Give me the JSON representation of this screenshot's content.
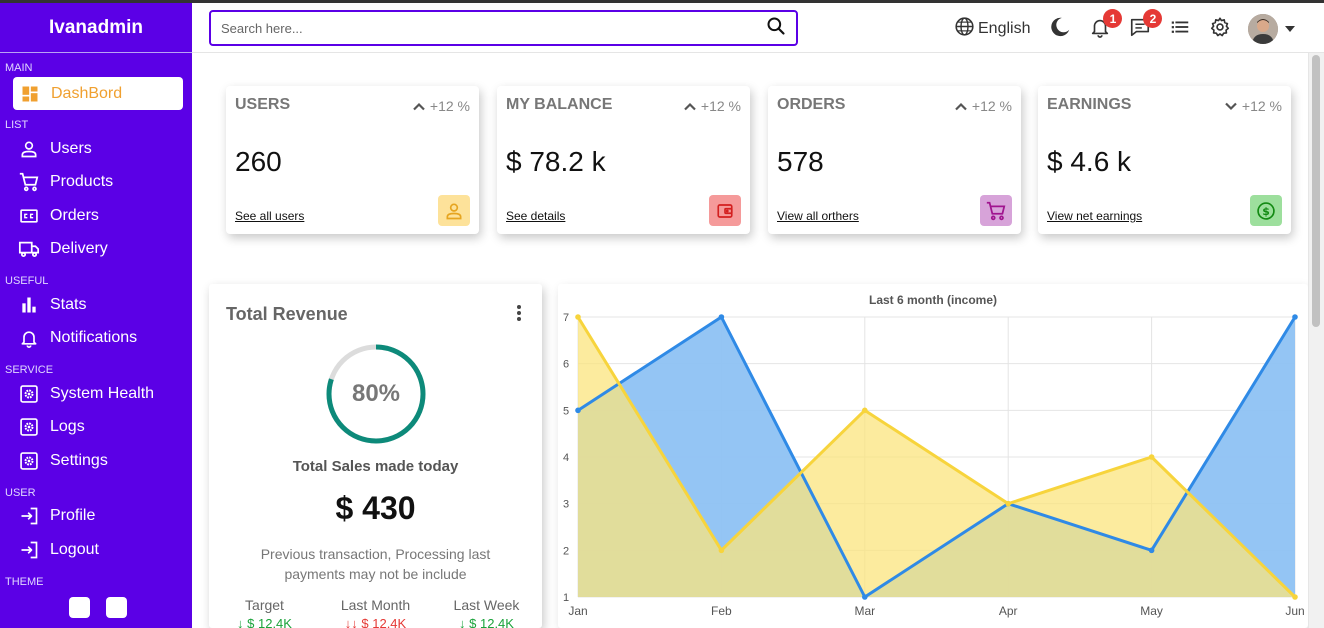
{
  "sidebar": {
    "brand": "Ivanadmin",
    "sections": [
      {
        "title": "MAIN",
        "items": [
          {
            "label": "DashBord",
            "icon": "dashboard-icon",
            "active": true
          }
        ]
      },
      {
        "title": "LIST",
        "items": [
          {
            "label": "Users",
            "icon": "person-icon"
          },
          {
            "label": "Products",
            "icon": "cart-icon"
          },
          {
            "label": "Orders",
            "icon": "credit-card-icon"
          },
          {
            "label": "Delivery",
            "icon": "truck-icon"
          }
        ]
      },
      {
        "title": "USEFUL",
        "items": [
          {
            "label": "Stats",
            "icon": "bar-chart-icon"
          },
          {
            "label": "Notifications",
            "icon": "bell-icon"
          }
        ]
      },
      {
        "title": "SERVICE",
        "items": [
          {
            "label": "System Health",
            "icon": "gear-box-icon"
          },
          {
            "label": "Logs",
            "icon": "gear-box-icon"
          },
          {
            "label": "Settings",
            "icon": "gear-box-icon"
          }
        ]
      },
      {
        "title": "USER",
        "items": [
          {
            "label": "Profile",
            "icon": "login-icon"
          },
          {
            "label": "Logout",
            "icon": "login-icon"
          }
        ]
      },
      {
        "title": "THEME",
        "items": []
      }
    ],
    "theme_swatches": [
      "#ffffff",
      "#ffffff"
    ],
    "accent": "#5b00e6"
  },
  "topbar": {
    "search_placeholder": "Search here...",
    "language": "English",
    "notifications_count": "1",
    "messages_count": "2"
  },
  "cards": [
    {
      "title": "USERS",
      "trend": "up",
      "percent": "+12 %",
      "value": "260",
      "link": "See all users",
      "icon": "person-icon",
      "icon_bg": "#fde29a",
      "icon_color": "#e6a520"
    },
    {
      "title": "MY BALANCE",
      "trend": "up",
      "percent": "+12 %",
      "value": "$ 78.2 k",
      "link": "See details",
      "icon": "wallet-icon",
      "icon_bg": "#f59a9a",
      "icon_color": "#d32020"
    },
    {
      "title": "ORDERS",
      "trend": "up",
      "percent": "+12 %",
      "value": "578",
      "link": "View all orthers",
      "icon": "cart-icon",
      "icon_bg": "#d7a3d9",
      "icon_color": "#a0148f"
    },
    {
      "title": "EARNINGS",
      "trend": "down",
      "percent": "+12 %",
      "value": "$ 4.6 k",
      "link": "View net earnings",
      "icon": "dollar-icon",
      "icon_bg": "#9ddf9d",
      "icon_color": "#138a13"
    }
  ],
  "revenue": {
    "title": "Total Revenue",
    "progress": 0.8,
    "progress_label": "80%",
    "subtitle": "Total Sales made today",
    "amount": "$ 430",
    "description": "Previous transaction, Processing last payments may not be include",
    "columns": [
      {
        "label": "Target",
        "value": "↓ $ 12.4K",
        "status": "pos"
      },
      {
        "label": "Last Month",
        "value": "↓↓ $ 12.4K",
        "status": "neg"
      },
      {
        "label": "Last Week",
        "value": "↓ $ 12.4K",
        "status": "pos"
      }
    ]
  },
  "chart_data": {
    "type": "area",
    "title": "Last 6 month (income)",
    "categories": [
      "Jan",
      "Feb",
      "Mar",
      "Apr",
      "May",
      "Jun"
    ],
    "ylim": [
      1,
      7
    ],
    "yticks": [
      "1",
      "2",
      "3",
      "4",
      "5",
      "6",
      "7"
    ],
    "grid": true,
    "series": [
      {
        "values": [
          5,
          7,
          1,
          3,
          2,
          7
        ],
        "color": "#2f8ae6",
        "fill": "#8ec2f3"
      },
      {
        "values": [
          7,
          2,
          5,
          3,
          4,
          1
        ],
        "color": "#f7d43c",
        "fill": "#fbe47e"
      }
    ]
  }
}
